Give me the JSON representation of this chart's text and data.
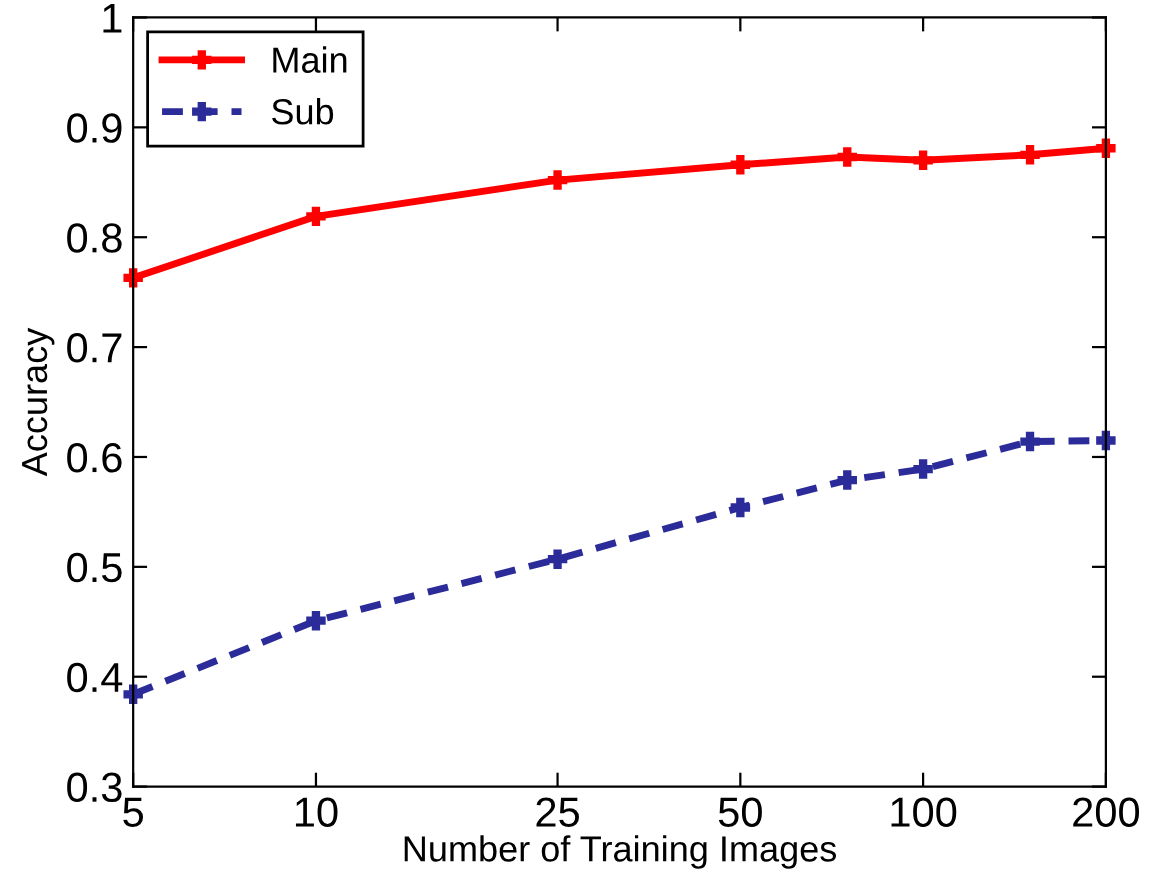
{
  "chart_data": {
    "type": "line",
    "xlabel": "Number of Training Images",
    "ylabel": "Accuracy",
    "x": [
      5,
      10,
      25,
      50,
      75,
      100,
      150,
      200
    ],
    "series": [
      {
        "name": "Main",
        "color": "#ff0000",
        "line_style": "solid",
        "values": [
          0.763,
          0.819,
          0.852,
          0.866,
          0.873,
          0.87,
          0.875,
          0.881
        ]
      },
      {
        "name": "Sub",
        "color": "#2b2b99",
        "line_style": "dashed",
        "values": [
          0.384,
          0.451,
          0.507,
          0.554,
          0.579,
          0.589,
          0.614,
          0.615
        ]
      }
    ],
    "log": "x",
    "xlim": [
      5,
      200
    ],
    "xticks": [
      5,
      10,
      25,
      50,
      100,
      200
    ],
    "ylim": [
      0.3,
      1
    ],
    "yticks": [
      0.3,
      0.4,
      0.5,
      0.6,
      0.7,
      0.8,
      0.9,
      {
        "value": 1,
        "label": "1"
      }
    ],
    "marker": "cross",
    "grid": false,
    "legend": "top left"
  }
}
